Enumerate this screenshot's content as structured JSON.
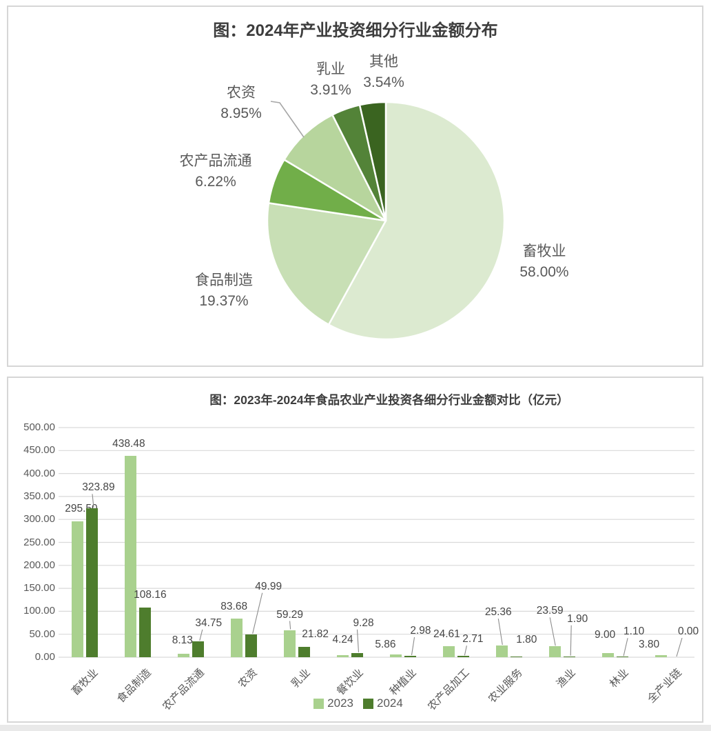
{
  "pie_panel": {
    "title": "图：2024年产业投资细分行业金额分布"
  },
  "bar_panel": {
    "title": "图：2023年-2024年食品农业产业投资各细分行业金额对比（亿元）",
    "legend": [
      "2023",
      "2024"
    ]
  },
  "colors": {
    "series_2023": "#a9d18e",
    "series_2024": "#4e7d2d",
    "grid": "#d9d9d9",
    "leader_line": "#8c8c8c",
    "title_text": "#3d3d3d",
    "axis_text": "#595959",
    "value_text": "#454545"
  },
  "chart_data": [
    {
      "type": "pie",
      "title": "图：2024年产业投资细分行业金额分布",
      "labels": [
        "畜牧业",
        "食品制造",
        "农产品流通",
        "农资",
        "乳业",
        "其他"
      ],
      "values": [
        58.0,
        19.37,
        6.22,
        8.95,
        3.91,
        3.54
      ],
      "percent_labels": [
        "58.00%",
        "19.37%",
        "6.22%",
        "8.95%",
        "3.91%",
        "3.54%"
      ],
      "colors": [
        "#dcead0",
        "#c8dfb5",
        "#71ae49",
        "#b7d59d",
        "#538338",
        "#3a6420"
      ],
      "start_angle": "top",
      "direction": "clockwise",
      "slice_border_color": "#ffffff"
    },
    {
      "type": "bar",
      "title": "图：2023年-2024年食品农业产业投资各细分行业金额对比（亿元）",
      "categories": [
        "畜牧业",
        "食品制造",
        "农产品流通",
        "农资",
        "乳业",
        "餐饮业",
        "种植业",
        "农产品加工",
        "农业服务",
        "渔业",
        "林业",
        "全产业链"
      ],
      "series": [
        {
          "name": "2023",
          "color": "#a9d18e",
          "values": [
            295.5,
            438.48,
            8.13,
            83.68,
            59.29,
            4.24,
            5.86,
            24.61,
            25.36,
            23.59,
            9.0,
            3.8
          ]
        },
        {
          "name": "2024",
          "color": "#4e7d2d",
          "values": [
            323.89,
            108.16,
            34.75,
            49.99,
            21.82,
            9.28,
            2.98,
            2.71,
            1.8,
            1.9,
            1.1,
            0.0
          ]
        }
      ],
      "ylim": [
        0,
        500
      ],
      "ytick_step": 50,
      "ytick_labels": [
        "0.00",
        "50.00",
        "100.00",
        "150.00",
        "200.00",
        "250.00",
        "300.00",
        "350.00",
        "400.00",
        "450.00",
        "500.00"
      ],
      "grid": true,
      "legend_position": "bottom"
    }
  ]
}
